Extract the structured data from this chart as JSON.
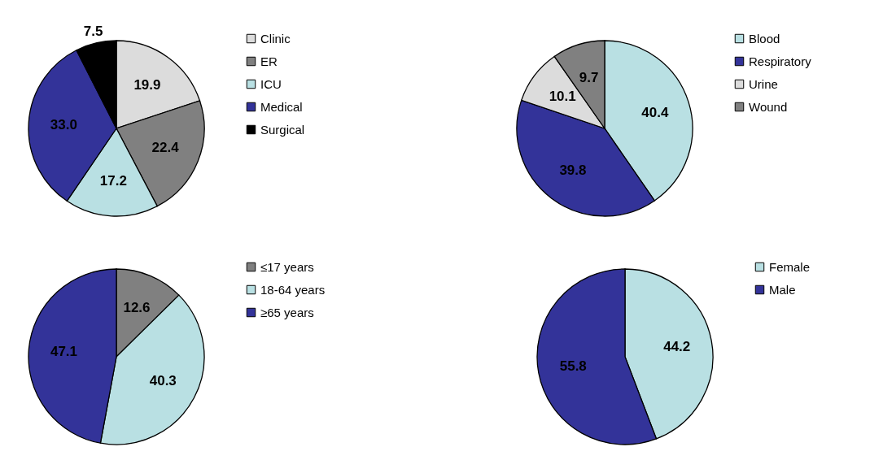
{
  "chart_data": [
    {
      "type": "pie",
      "categories": [
        "Clinic",
        "ER",
        "ICU",
        "Medical",
        "Surgical"
      ],
      "values": [
        19.9,
        22.4,
        17.2,
        33.0,
        7.5
      ],
      "value_labels": [
        "19.9",
        "22.4",
        "17.2",
        "33.0",
        "7.5"
      ],
      "colors": [
        "#dcdcdc",
        "#808080",
        "#b9e0e3",
        "#333399",
        "#000000"
      ],
      "data_labels": true,
      "legend": "right"
    },
    {
      "type": "pie",
      "categories": [
        "Blood",
        "Respiratory",
        "Urine",
        "Wound"
      ],
      "values": [
        40.4,
        39.8,
        10.1,
        9.7
      ],
      "colors": [
        "#b9e0e3",
        "#333399",
        "#dcdcdc",
        "#808080"
      ],
      "data_labels": true,
      "legend": "right"
    },
    {
      "type": "pie",
      "categories": [
        "≤17 years",
        "18-64 years",
        "≥65 years"
      ],
      "values": [
        12.6,
        40.3,
        47.1
      ],
      "colors": [
        "#808080",
        "#b9e0e3",
        "#333399"
      ],
      "data_labels": true,
      "legend": "right"
    },
    {
      "type": "pie",
      "categories": [
        "Female",
        "Male"
      ],
      "values": [
        44.2,
        55.8
      ],
      "colors": [
        "#b9e0e3",
        "#333399"
      ],
      "data_labels": true,
      "legend": "right"
    }
  ]
}
